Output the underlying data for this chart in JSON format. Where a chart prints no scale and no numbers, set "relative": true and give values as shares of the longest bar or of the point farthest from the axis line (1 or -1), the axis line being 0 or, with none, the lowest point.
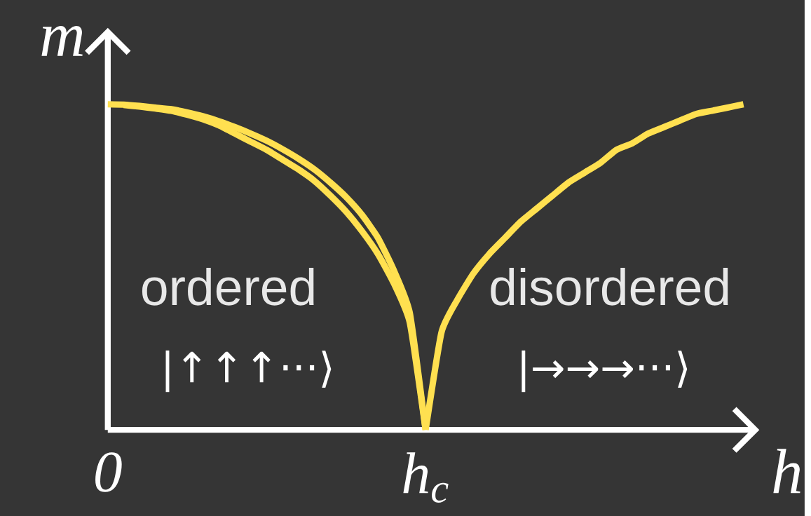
{
  "chart_data": {
    "type": "line",
    "relative": true,
    "xlabel": "h",
    "ylabel": "m",
    "line_style": "solid",
    "categories": [
      "0",
      null,
      null,
      null,
      null,
      null,
      null,
      null,
      null,
      null,
      null,
      null,
      null,
      null,
      null,
      null,
      null,
      null,
      null,
      null,
      "h$_{c}$",
      null,
      null,
      null,
      null,
      null,
      null,
      null,
      null,
      null,
      null,
      null,
      null,
      null,
      null,
      null,
      null,
      null,
      null,
      null,
      null
    ],
    "series": [
      {
        "color": "#ffe050",
        "values": [
          1,
          0.999,
          0.995,
          0.99,
          0.985,
          0.975,
          0.963,
          0.948,
          0.93,
          0.91,
          0.888,
          0.862,
          0.833,
          0.8,
          0.76,
          0.715,
          0.66,
          0.59,
          0.49,
          0.36,
          0,
          null,
          null,
          null,
          null,
          null,
          null,
          null,
          null,
          null,
          null,
          null,
          null,
          null,
          null,
          null,
          null,
          null,
          null,
          null,
          null
        ]
      },
      {
        "color": "#ffe050",
        "values": [
          null,
          0.998,
          0.993,
          0.987,
          0.98,
          0.968,
          0.954,
          0.935,
          0.91,
          0.885,
          0.86,
          0.83,
          0.8,
          0.765,
          0.72,
          0.67,
          0.61,
          0.54,
          0.45,
          0.33,
          0,
          null,
          null,
          null,
          null,
          null,
          null,
          null,
          null,
          null,
          null,
          null,
          null,
          null,
          null,
          null,
          null,
          null,
          null,
          null,
          null
        ]
      },
      {
        "color": "#ffe050",
        "values": [
          null,
          null,
          null,
          null,
          null,
          null,
          null,
          null,
          null,
          null,
          null,
          null,
          null,
          null,
          null,
          null,
          null,
          null,
          null,
          null,
          0,
          0.3,
          0.4,
          0.48,
          0.54,
          0.59,
          0.64,
          0.68,
          0.72,
          0.76,
          0.79,
          0.82,
          0.86,
          0.88,
          0.91,
          0.93,
          0.95,
          0.97,
          0.98,
          0.99,
          1.0
        ]
      }
    ],
    "annotations": [
      "ordered",
      "|↑↑↑···⟩",
      "disordered",
      "|→→→···⟩"
    ]
  }
}
